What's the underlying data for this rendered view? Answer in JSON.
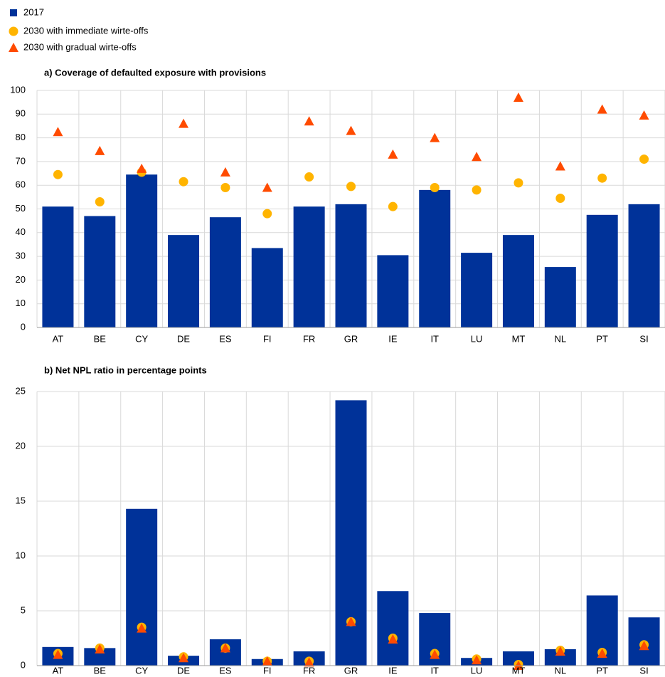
{
  "chart_data": [
    {
      "type": "bar",
      "title": "a) Coverage of defaulted exposure with provisions",
      "categories": [
        "AT",
        "BE",
        "CY",
        "DE",
        "ES",
        "FI",
        "FR",
        "GR",
        "IE",
        "IT",
        "LU",
        "MT",
        "NL",
        "PT",
        "SI"
      ],
      "series": [
        {
          "name": "2017",
          "color": "#003299",
          "marker": "square",
          "values": [
            51,
            47,
            64.5,
            39,
            46.5,
            33.5,
            51,
            52,
            30.5,
            58,
            31.5,
            39,
            25.5,
            47.5,
            52
          ]
        },
        {
          "name": "2030 with immediate wirte-offs",
          "color": "#FFB400",
          "marker": "circle",
          "values": [
            64.5,
            53,
            65.5,
            61.5,
            59,
            48,
            63.5,
            59.5,
            51,
            59,
            58,
            61,
            54.5,
            63,
            71
          ]
        },
        {
          "name": "2030 with gradual wirte-offs",
          "color": "#FF4B00",
          "marker": "triangle",
          "values": [
            82.5,
            74.5,
            67,
            86,
            65.5,
            59,
            87,
            83,
            73,
            80,
            72,
            97,
            68,
            92,
            89.5
          ]
        }
      ],
      "ylim": [
        0,
        100
      ],
      "yticks": [
        0,
        10,
        20,
        30,
        40,
        50,
        60,
        70,
        80,
        90,
        100
      ],
      "grid": true
    },
    {
      "type": "bar",
      "title": "b) Net NPL ratio in percentage points",
      "categories": [
        "AT",
        "BE",
        "CY",
        "DE",
        "ES",
        "FI",
        "FR",
        "GR",
        "IE",
        "IT",
        "LU",
        "MT",
        "NL",
        "PT",
        "SI"
      ],
      "series": [
        {
          "color": "#003299",
          "marker": "square",
          "values": [
            1.7,
            1.6,
            14.3,
            0.9,
            2.4,
            0.6,
            1.3,
            24.2,
            6.8,
            4.8,
            0.7,
            1.3,
            1.5,
            6.4,
            4.4
          ]
        },
        {
          "color": "#FFB400",
          "marker": "circle",
          "values": [
            1.1,
            1.6,
            3.5,
            0.8,
            1.6,
            0.4,
            0.4,
            4.0,
            2.5,
            1.1,
            0.6,
            0.1,
            1.4,
            1.2,
            1.9
          ]
        },
        {
          "color": "#FF4B00",
          "marker": "triangle",
          "values": [
            1.0,
            1.5,
            3.4,
            0.7,
            1.6,
            0.4,
            0.3,
            4.0,
            2.4,
            1.0,
            0.5,
            0.0,
            1.3,
            1.1,
            1.8
          ]
        }
      ],
      "ylim": [
        0,
        25
      ],
      "yticks": [
        0,
        5,
        10,
        15,
        20,
        25
      ],
      "grid": true
    }
  ]
}
